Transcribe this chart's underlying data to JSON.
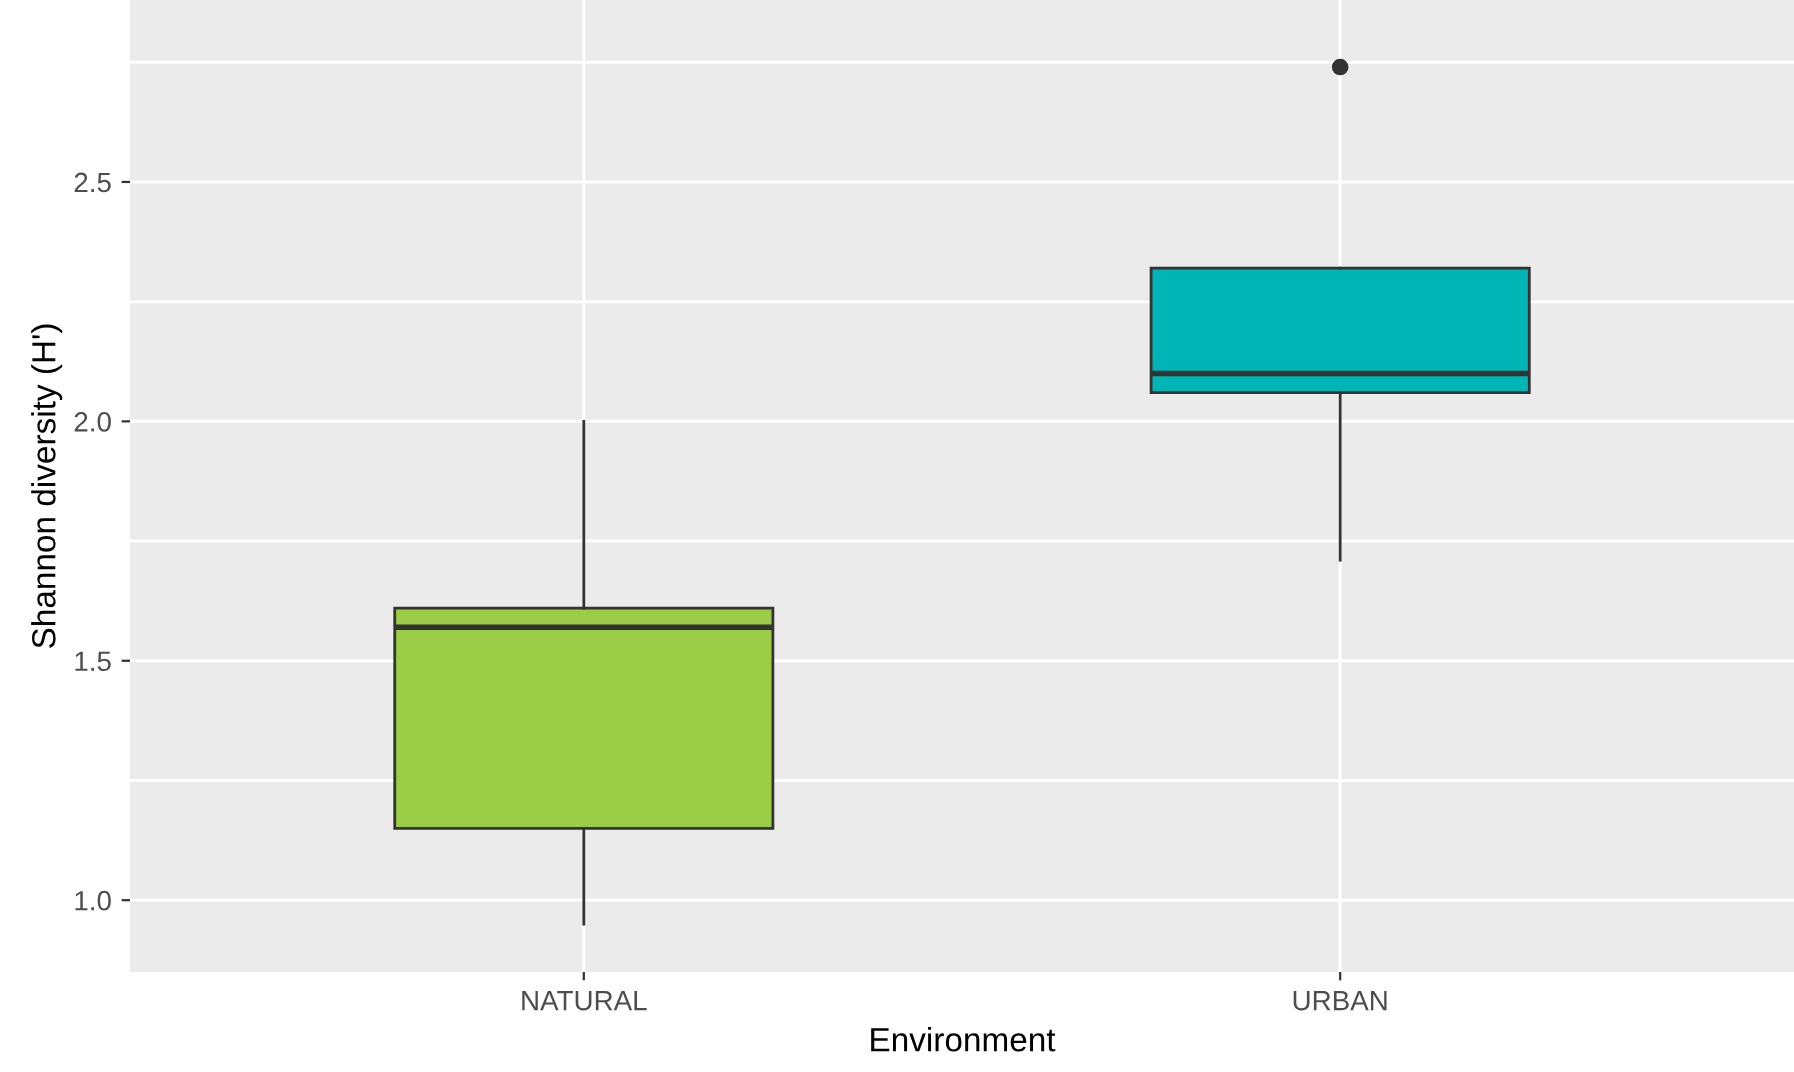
{
  "chart_data": {
    "type": "box",
    "xlabel": "Environment",
    "ylabel": "Shannon diversity (H')",
    "categories": [
      "NATURAL",
      "URBAN"
    ],
    "colors": [
      "#9acd45",
      "#00b5b5"
    ],
    "boxes": [
      {
        "low": 0.95,
        "q1": 1.15,
        "median": 1.57,
        "q3": 1.61,
        "high": 2.0
      },
      {
        "low": 1.71,
        "q1": 2.06,
        "median": 2.1,
        "q3": 2.32,
        "high": 2.32,
        "outliers": [
          2.74
        ]
      }
    ],
    "ylim": [
      0.85,
      2.88
    ],
    "yticks": [
      {
        "value": 1.0,
        "label": "1.0"
      },
      {
        "value": 1.25,
        "label": null
      },
      {
        "value": 1.5,
        "label": "1.5"
      },
      {
        "value": 1.75,
        "label": null
      },
      {
        "value": 2.0,
        "label": "2.0"
      },
      {
        "value": 2.25,
        "label": null
      },
      {
        "value": 2.5,
        "label": "2.5"
      },
      {
        "value": 2.75,
        "label": null
      }
    ],
    "grid": true
  }
}
